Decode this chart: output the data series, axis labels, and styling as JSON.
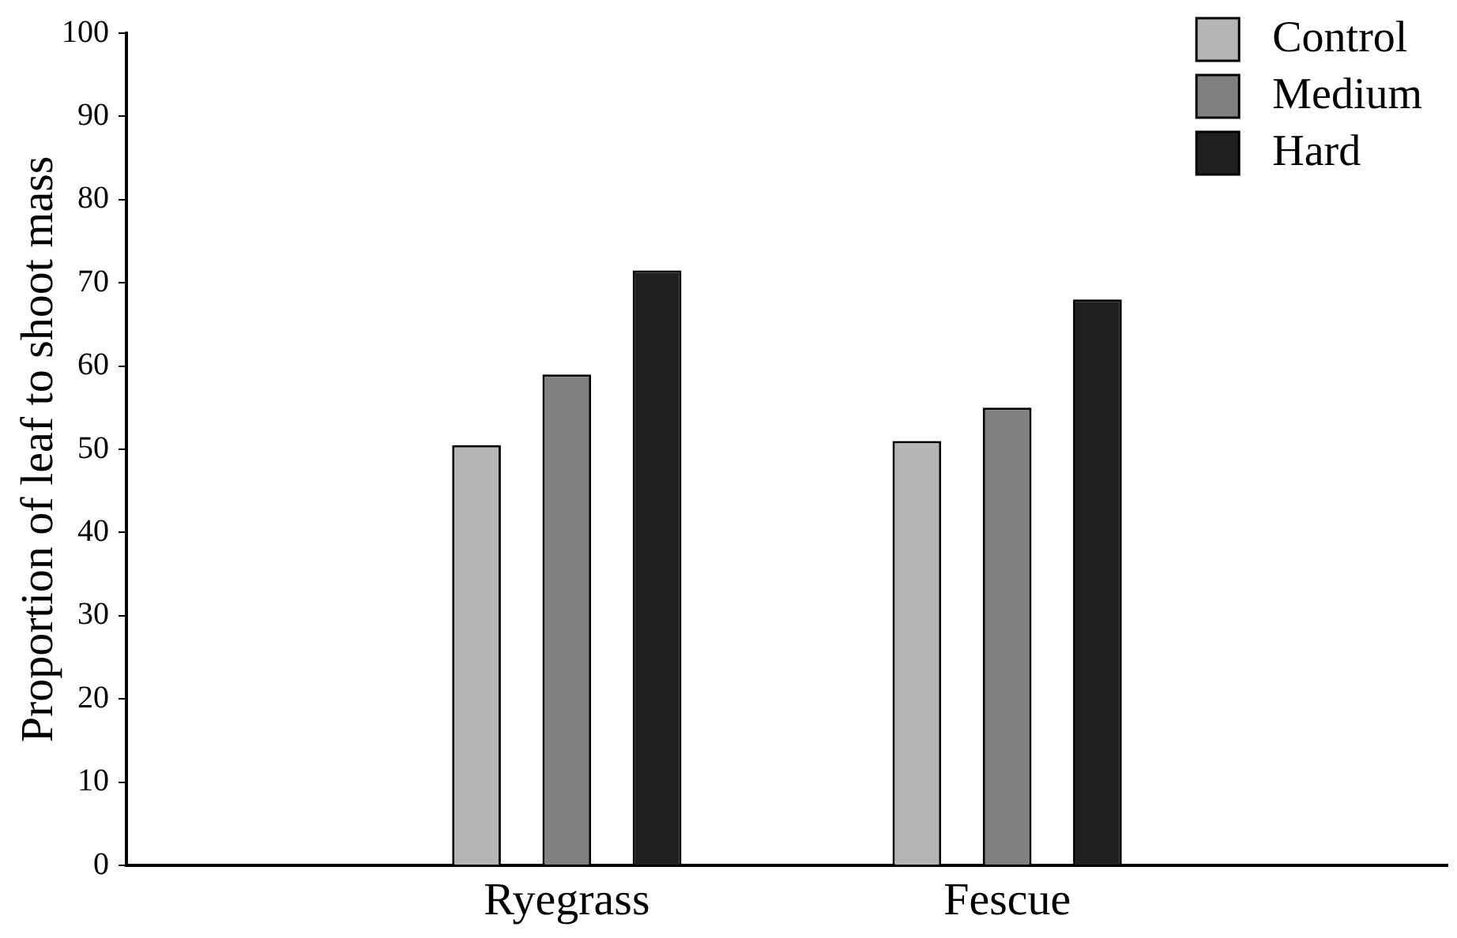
{
  "chart_data": {
    "type": "bar",
    "categories": [
      null,
      "Ryegrass",
      "Fescue",
      null
    ],
    "ylabel": "Proportion of leaf to shoot mass",
    "ylim": [
      0,
      100
    ],
    "yticks": [
      0,
      10,
      20,
      30,
      40,
      50,
      60,
      70,
      80,
      90,
      100
    ],
    "series": [
      {
        "name": "Control",
        "color": "#b5b5b5",
        "values": [
          null,
          50.5,
          51,
          null
        ]
      },
      {
        "name": "Medium",
        "color": "#808080",
        "values": [
          null,
          59,
          55,
          null
        ]
      },
      {
        "name": "Hard",
        "color": "#202020",
        "values": [
          null,
          71.5,
          68,
          null
        ]
      }
    ],
    "legend": "top right"
  }
}
